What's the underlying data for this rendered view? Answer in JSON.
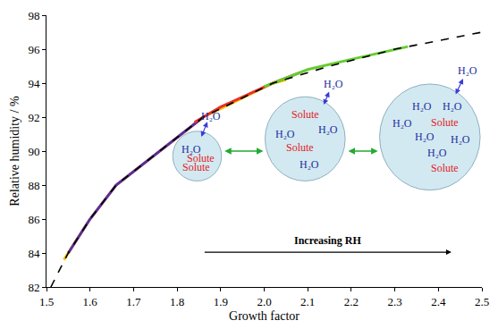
{
  "chart_data": {
    "type": "line",
    "x_label": "Growth factor",
    "y_label": "Relative humidity / %",
    "xlim": [
      1.5,
      2.5
    ],
    "xticks": [
      1.5,
      1.6,
      1.7,
      1.8,
      1.9,
      {
        "value": 2,
        "label": "2.0"
      },
      2.1,
      2.2,
      2.3,
      2.4,
      2.5
    ],
    "ylim": [
      82,
      98
    ],
    "yticks": [
      82,
      84,
      86,
      88,
      90,
      92,
      94,
      96,
      98
    ],
    "grid": false,
    "series": [
      {
        "color": "#f5c400",
        "line_style": "solid",
        "x": [
          1.54,
          1.6,
          1.66,
          1.76,
          1.86,
          2.02,
          2.05
        ],
        "values": [
          83.6,
          86,
          88,
          90,
          92,
          94,
          94.2
        ]
      },
      {
        "color": "#5b2c9e",
        "line_style": "solid",
        "x": [
          1.55,
          1.6,
          1.66,
          1.76,
          1.86
        ],
        "values": [
          84,
          86,
          88,
          90,
          92
        ]
      },
      {
        "color": "#e8312a",
        "line_style": "solid",
        "x": [
          1.84,
          1.9,
          2.02,
          2.08
        ],
        "values": [
          91.7,
          92.6,
          94,
          94.6
        ]
      },
      {
        "color": "#66cc33",
        "line_style": "solid",
        "x": [
          2.0,
          2.1,
          2.2,
          2.33
        ],
        "values": [
          93.8,
          94.8,
          95.4,
          96.15
        ]
      },
      {
        "color": "#000000",
        "line_style": "dash",
        "x": [
          1.51,
          1.55,
          1.6,
          1.66,
          1.76,
          1.86,
          2.02,
          2.15,
          2.3,
          2.4,
          2.5
        ],
        "values": [
          82,
          84,
          86,
          88,
          90,
          92,
          94,
          95,
          96,
          96.5,
          97
        ]
      }
    ],
    "inset": {
      "particles": [
        {
          "outside": {
            "text": "H₂O",
            "color": "#1a2e9e"
          },
          "inside": [
            {
              "text": "H₂O",
              "color": "#1a2e9e"
            },
            {
              "text": "Solute",
              "color": "#e31a1c"
            },
            {
              "text": "Solute",
              "color": "#e31a1c"
            }
          ]
        },
        {
          "outside": {
            "text": "H₂O",
            "color": "#1a2e9e"
          },
          "inside": [
            {
              "text": "Solute",
              "color": "#e31a1c"
            },
            {
              "text": "H₂O",
              "color": "#1a2e9e"
            },
            {
              "text": "H₂O",
              "color": "#1a2e9e"
            },
            {
              "text": "Solute",
              "color": "#e31a1c"
            },
            {
              "text": "H₂O",
              "color": "#1a2e9e"
            }
          ]
        },
        {
          "outside": {
            "text": "H₂O",
            "color": "#1a2e9e"
          },
          "inside": [
            {
              "text": "H₂O",
              "color": "#1a2e9e"
            },
            {
              "text": "H₂O",
              "color": "#1a2e9e"
            },
            {
              "text": "H₂O",
              "color": "#1a2e9e"
            },
            {
              "text": "Solute",
              "color": "#e31a1c"
            },
            {
              "text": "H₂O",
              "color": "#1a2e9e"
            },
            {
              "text": "H₂O",
              "color": "#1a2e9e"
            },
            {
              "text": "H₂O",
              "color": "#1a2e9e"
            },
            {
              "text": "Solute",
              "color": "#e31a1c"
            }
          ]
        }
      ],
      "label": "Increasing RH"
    }
  }
}
